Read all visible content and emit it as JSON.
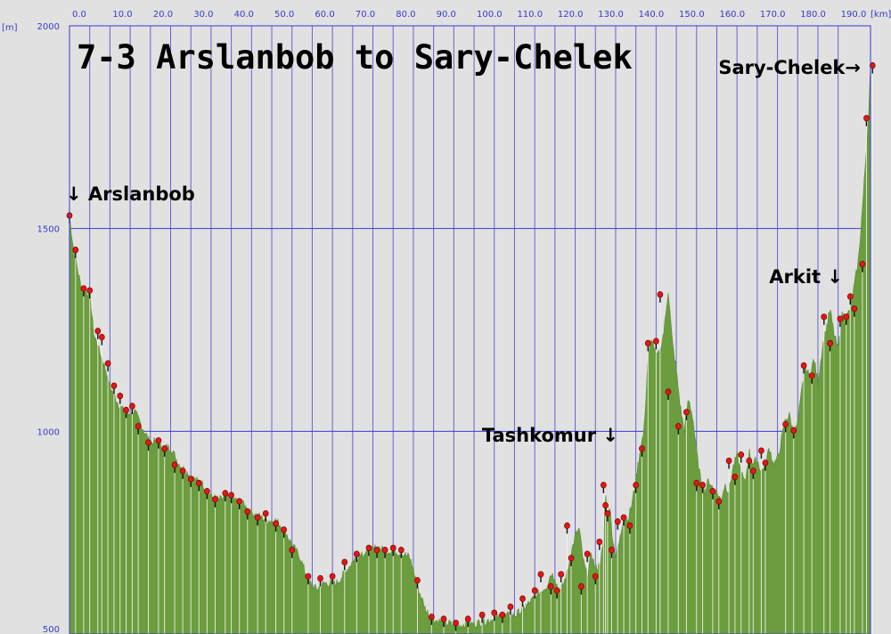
{
  "chart_data": {
    "type": "area",
    "title": "7-3 Arslanbob to Sary-Chelek",
    "x_unit": "[km]",
    "y_unit": "[m]",
    "xlim": [
      0,
      198
    ],
    "ylim": [
      500,
      2000
    ],
    "x_ticks": [
      "0.0",
      "10.0",
      "20.0",
      "30.0",
      "40.0",
      "50.0",
      "60.0",
      "70.0",
      "80.0",
      "90.0",
      "100.0",
      "110.0",
      "120.0",
      "130.0",
      "140.0",
      "150.0",
      "160.0",
      "170.0",
      "180.0",
      "190.0"
    ],
    "y_ticks": [
      "500",
      "1000",
      "1500",
      "2000"
    ],
    "grid": true,
    "colors": {
      "fill": "#6b9c3d",
      "grid": "#3b3bd0",
      "background": "#e1e1e1",
      "marker": "#e01818"
    },
    "profile": [
      [
        0,
        1530
      ],
      [
        1,
        1450
      ],
      [
        3,
        1350
      ],
      [
        5,
        1340
      ],
      [
        6,
        1240
      ],
      [
        7,
        1210
      ],
      [
        9,
        1150
      ],
      [
        10,
        1110
      ],
      [
        12,
        1070
      ],
      [
        14,
        1040
      ],
      [
        16,
        1050
      ],
      [
        18,
        1010
      ],
      [
        20,
        970
      ],
      [
        21,
        975
      ],
      [
        23,
        960
      ],
      [
        25,
        960
      ],
      [
        27,
        920
      ],
      [
        29,
        900
      ],
      [
        31,
        880
      ],
      [
        33,
        870
      ],
      [
        35,
        840
      ],
      [
        37,
        830
      ],
      [
        39,
        840
      ],
      [
        41,
        830
      ],
      [
        43,
        820
      ],
      [
        45,
        800
      ],
      [
        47,
        790
      ],
      [
        49,
        780
      ],
      [
        51,
        780
      ],
      [
        53,
        760
      ],
      [
        55,
        720
      ],
      [
        57,
        690
      ],
      [
        59,
        630
      ],
      [
        61,
        610
      ],
      [
        63,
        625
      ],
      [
        66,
        625
      ],
      [
        68,
        650
      ],
      [
        70,
        680
      ],
      [
        72,
        700
      ],
      [
        74,
        700
      ],
      [
        76,
        715
      ],
      [
        78,
        705
      ],
      [
        80,
        705
      ],
      [
        82,
        700
      ],
      [
        84,
        690
      ],
      [
        85,
        660
      ],
      [
        86,
        615
      ],
      [
        87,
        590
      ],
      [
        88,
        560
      ],
      [
        90,
        535
      ],
      [
        92,
        530
      ],
      [
        94,
        525
      ],
      [
        96,
        520
      ],
      [
        98,
        525
      ],
      [
        100,
        525
      ],
      [
        102,
        530
      ],
      [
        104,
        535
      ],
      [
        106,
        540
      ],
      [
        108,
        545
      ],
      [
        110,
        545
      ],
      [
        112,
        560
      ],
      [
        114,
        580
      ],
      [
        116,
        600
      ],
      [
        118,
        620
      ],
      [
        119,
        650
      ],
      [
        120,
        640
      ],
      [
        121,
        600
      ],
      [
        122,
        620
      ],
      [
        123,
        650
      ],
      [
        124,
        700
      ],
      [
        125,
        740
      ],
      [
        126,
        760
      ],
      [
        127,
        680
      ],
      [
        128,
        640
      ],
      [
        129,
        700
      ],
      [
        130,
        660
      ],
      [
        131,
        670
      ],
      [
        132,
        720
      ],
      [
        132.5,
        850
      ],
      [
        133,
        780
      ],
      [
        133.5,
        820
      ],
      [
        134,
        760
      ],
      [
        134.5,
        720
      ],
      [
        135,
        690
      ],
      [
        136,
        730
      ],
      [
        137,
        790
      ],
      [
        138,
        780
      ],
      [
        139,
        820
      ],
      [
        140,
        880
      ],
      [
        141,
        950
      ],
      [
        142,
        1000
      ],
      [
        143,
        1180
      ],
      [
        144,
        1230
      ],
      [
        145,
        1180
      ],
      [
        146,
        1200
      ],
      [
        147,
        1250
      ],
      [
        148,
        1350
      ],
      [
        149,
        1220
      ],
      [
        150,
        1150
      ],
      [
        151,
        1060
      ],
      [
        152,
        1000
      ],
      [
        153,
        1080
      ],
      [
        154,
        1040
      ],
      [
        155,
        950
      ],
      [
        156,
        880
      ],
      [
        157,
        850
      ],
      [
        158,
        880
      ],
      [
        159,
        860
      ],
      [
        160,
        850
      ],
      [
        161,
        830
      ],
      [
        162,
        870
      ],
      [
        163,
        850
      ],
      [
        164,
        910
      ],
      [
        165,
        940
      ],
      [
        166,
        900
      ],
      [
        167,
        870
      ],
      [
        168,
        950
      ],
      [
        169,
        920
      ],
      [
        170,
        930
      ],
      [
        171,
        900
      ],
      [
        172,
        920
      ],
      [
        173,
        960
      ],
      [
        174,
        920
      ],
      [
        175,
        930
      ],
      [
        176,
        980
      ],
      [
        177,
        1030
      ],
      [
        178,
        1040
      ],
      [
        179,
        990
      ],
      [
        180,
        1020
      ],
      [
        181,
        1100
      ],
      [
        182,
        1160
      ],
      [
        183,
        1130
      ],
      [
        184,
        1180
      ],
      [
        185,
        1120
      ],
      [
        186,
        1200
      ],
      [
        187,
        1250
      ],
      [
        188,
        1300
      ],
      [
        189,
        1240
      ],
      [
        190,
        1200
      ],
      [
        191,
        1290
      ],
      [
        192,
        1280
      ],
      [
        193,
        1300
      ],
      [
        194,
        1360
      ],
      [
        195,
        1420
      ],
      [
        196,
        1550
      ],
      [
        197,
        1700
      ],
      [
        197.5,
        1780
      ],
      [
        198,
        1900
      ]
    ],
    "waypoints": [
      [
        0,
        1530
      ],
      [
        1.5,
        1445
      ],
      [
        3.5,
        1350
      ],
      [
        5,
        1345
      ],
      [
        7,
        1245
      ],
      [
        8,
        1230
      ],
      [
        9.5,
        1165
      ],
      [
        11,
        1110
      ],
      [
        12.5,
        1085
      ],
      [
        14,
        1050
      ],
      [
        15.5,
        1060
      ],
      [
        17,
        1010
      ],
      [
        19.5,
        970
      ],
      [
        22,
        975
      ],
      [
        23.5,
        955
      ],
      [
        26,
        915
      ],
      [
        28,
        900
      ],
      [
        30,
        880
      ],
      [
        32,
        870
      ],
      [
        34,
        850
      ],
      [
        36,
        830
      ],
      [
        38.5,
        845
      ],
      [
        40,
        840
      ],
      [
        42,
        825
      ],
      [
        44,
        800
      ],
      [
        46.5,
        785
      ],
      [
        48.5,
        795
      ],
      [
        51,
        770
      ],
      [
        53,
        755
      ],
      [
        55,
        705
      ],
      [
        59,
        640
      ],
      [
        62,
        635
      ],
      [
        65,
        640
      ],
      [
        68,
        675
      ],
      [
        71,
        695
      ],
      [
        74,
        710
      ],
      [
        76,
        705
      ],
      [
        78,
        705
      ],
      [
        80,
        710
      ],
      [
        82,
        705
      ],
      [
        86,
        630
      ],
      [
        89.5,
        540
      ],
      [
        92.5,
        535
      ],
      [
        95.5,
        525
      ],
      [
        98.5,
        535
      ],
      [
        102,
        545
      ],
      [
        105,
        550
      ],
      [
        107,
        545
      ],
      [
        109,
        565
      ],
      [
        112,
        585
      ],
      [
        115,
        605
      ],
      [
        116.5,
        645
      ],
      [
        119,
        615
      ],
      [
        120.5,
        605
      ],
      [
        121.5,
        645
      ],
      [
        123,
        765
      ],
      [
        124,
        685
      ],
      [
        126.5,
        615
      ],
      [
        128,
        695
      ],
      [
        130,
        640
      ],
      [
        131,
        725
      ],
      [
        132,
        865
      ],
      [
        132.5,
        815
      ],
      [
        133,
        795
      ],
      [
        134,
        705
      ],
      [
        135.5,
        775
      ],
      [
        137,
        785
      ],
      [
        138.5,
        765
      ],
      [
        140,
        865
      ],
      [
        141.5,
        955
      ],
      [
        143,
        1215
      ],
      [
        145,
        1220
      ],
      [
        146,
        1335
      ],
      [
        148,
        1095
      ],
      [
        150.5,
        1010
      ],
      [
        152.5,
        1045
      ],
      [
        155,
        870
      ],
      [
        156.5,
        865
      ],
      [
        159,
        850
      ],
      [
        160.5,
        825
      ],
      [
        163,
        925
      ],
      [
        164.5,
        885
      ],
      [
        166,
        940
      ],
      [
        168,
        925
      ],
      [
        169,
        900
      ],
      [
        171,
        950
      ],
      [
        172,
        920
      ],
      [
        177,
        1015
      ],
      [
        179,
        1000
      ],
      [
        181.5,
        1160
      ],
      [
        183.5,
        1135
      ],
      [
        186.5,
        1280
      ],
      [
        188,
        1215
      ],
      [
        190.5,
        1275
      ],
      [
        192,
        1280
      ],
      [
        193,
        1330
      ],
      [
        194,
        1300
      ],
      [
        196,
        1410
      ],
      [
        197,
        1770
      ],
      [
        198.5,
        1900
      ]
    ],
    "annotations": [
      {
        "text": "↓ Arslanbob",
        "x": 0,
        "y": 1530
      },
      {
        "text": "Tashkomur ↓",
        "x": 140,
        "y": 950
      },
      {
        "text": "Arkit ↓",
        "x": 190,
        "y": 1300
      },
      {
        "text": "Sary-Chelek→",
        "x": 198,
        "y": 1900
      }
    ]
  }
}
